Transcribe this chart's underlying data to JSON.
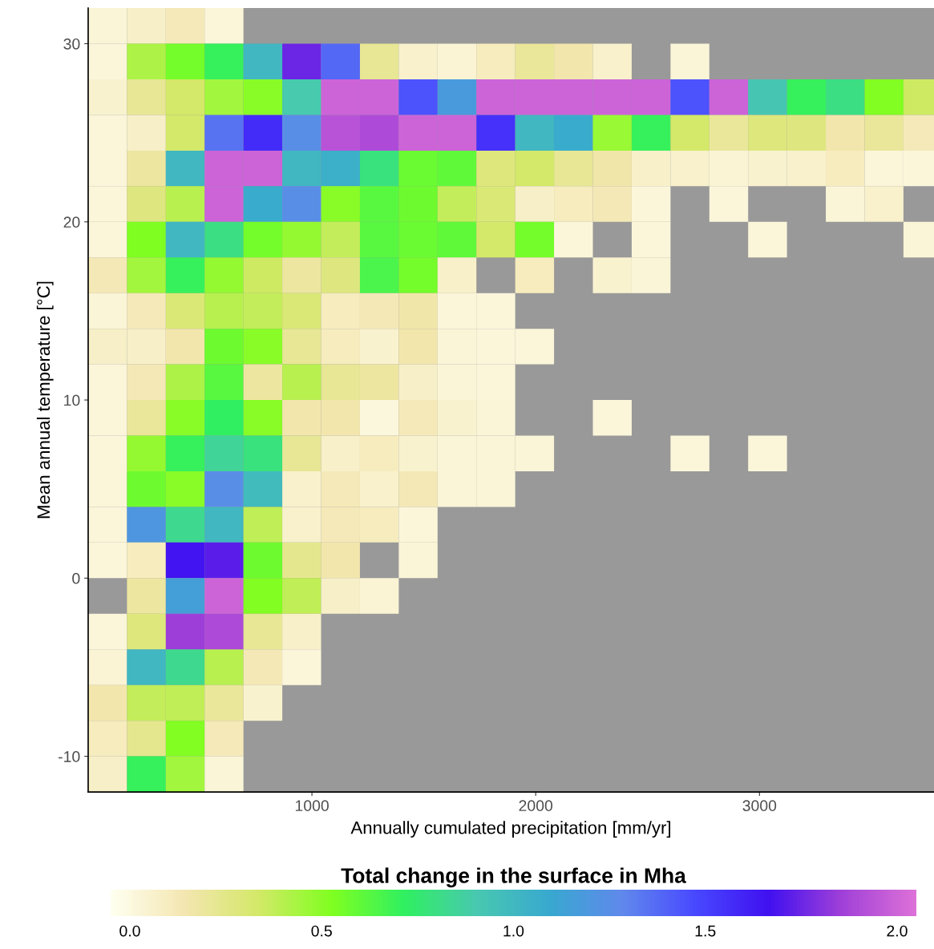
{
  "chart_data": {
    "type": "heatmap",
    "xlabel": "Annually cumulated precipitation [mm/yr]",
    "ylabel": "Mean annual temperature [°C]",
    "clabel": "Total change in the surface in Mha",
    "x": [
      87,
      260,
      434,
      607,
      781,
      954,
      1128,
      1301,
      1475,
      1648,
      1822,
      1995,
      2169,
      2342,
      2516,
      2689,
      2863,
      3036,
      3210,
      3383,
      3557,
      3730
    ],
    "y": [
      31,
      29,
      27,
      25,
      23,
      21,
      19,
      17,
      15,
      13,
      11,
      9,
      7,
      5,
      3,
      1,
      -1,
      -3,
      -5,
      -7,
      -9,
      -11
    ],
    "xlim": [
      0,
      3780
    ],
    "xticks": [
      1000,
      2000,
      3000
    ],
    "ylim": [
      -12,
      32
    ],
    "yticks": [
      -10,
      0,
      10,
      20,
      30
    ],
    "clim": [
      -0.05,
      2.05
    ],
    "cticks": [
      {
        "value": 0,
        "label": "0.0"
      },
      {
        "value": 0.5,
        "label": "0.5"
      },
      {
        "value": 1,
        "label": "1.0"
      },
      {
        "value": 1.5,
        "label": "1.5"
      },
      {
        "value": 2,
        "label": "2.0"
      }
    ],
    "colors": [
      "#fffff0",
      "#f3e6b0",
      "#d4e868",
      "#80ff20",
      "#30f060",
      "#48c8b0",
      "#38a8d0",
      "#6088ec",
      "#4848ff",
      "#4010f0",
      "#a040d8",
      "#dc70d8"
    ],
    "grid": false,
    "cells": [
      [
        0.03,
        0.08,
        0.12,
        0.02,
        null,
        null,
        null,
        null,
        null,
        null,
        null,
        null,
        null,
        null,
        null,
        null,
        null,
        null,
        null,
        null,
        null,
        null
      ],
      [
        0.02,
        0.42,
        0.55,
        0.7,
        1.0,
        1.75,
        1.38,
        0.22,
        0.06,
        0.04,
        0.1,
        0.2,
        0.15,
        0.06,
        null,
        0.03,
        null,
        null,
        null,
        null,
        null,
        null
      ],
      [
        0.05,
        0.22,
        0.33,
        0.45,
        0.5,
        0.9,
        2.0,
        2.0,
        1.45,
        1.18,
        2.0,
        2.0,
        2.0,
        2.0,
        2.0,
        1.45,
        2.0,
        0.92,
        0.7,
        0.8,
        0.52,
        0.35
      ],
      [
        0.02,
        0.08,
        0.33,
        1.35,
        1.57,
        1.25,
        1.93,
        1.9,
        2.0,
        2.0,
        1.55,
        1.0,
        1.08,
        0.47,
        0.7,
        0.33,
        0.2,
        0.28,
        0.27,
        0.15,
        0.2,
        0.12
      ],
      [
        0.02,
        0.18,
        1.0,
        2.0,
        2.0,
        1.0,
        1.05,
        0.78,
        0.58,
        0.6,
        0.28,
        0.33,
        0.22,
        0.16,
        0.07,
        0.06,
        0.04,
        0.05,
        0.06,
        0.1,
        0.02,
        0.02
      ],
      [
        0.02,
        0.27,
        0.4,
        2.0,
        1.08,
        1.25,
        0.5,
        0.62,
        0.57,
        0.37,
        0.3,
        0.08,
        0.1,
        0.13,
        0.02,
        null,
        0.02,
        null,
        null,
        0.03,
        0.06,
        null
      ],
      [
        0.02,
        0.53,
        1.0,
        0.8,
        0.55,
        0.48,
        0.37,
        0.62,
        0.58,
        0.6,
        0.33,
        0.55,
        0.02,
        null,
        0.02,
        null,
        null,
        0.02,
        null,
        null,
        null,
        0.03
      ],
      [
        0.13,
        0.45,
        0.7,
        0.48,
        0.35,
        0.18,
        0.27,
        0.65,
        0.55,
        0.07,
        null,
        0.1,
        null,
        0.05,
        0.03,
        null,
        null,
        null,
        null,
        null,
        null,
        null
      ],
      [
        0.03,
        0.12,
        0.3,
        0.4,
        0.37,
        0.3,
        0.1,
        0.13,
        0.16,
        0.02,
        0.02,
        null,
        null,
        null,
        null,
        null,
        null,
        null,
        null,
        null,
        null,
        null
      ],
      [
        0.08,
        0.08,
        0.15,
        0.57,
        0.5,
        0.22,
        0.1,
        0.05,
        0.15,
        0.03,
        0.02,
        0.02,
        null,
        null,
        null,
        null,
        null,
        null,
        null,
        null,
        null,
        null
      ],
      [
        0.02,
        0.13,
        0.42,
        0.62,
        0.18,
        0.4,
        0.22,
        0.18,
        0.08,
        0.03,
        0.02,
        null,
        null,
        null,
        null,
        null,
        null,
        null,
        null,
        null,
        null,
        null
      ],
      [
        0.02,
        0.2,
        0.5,
        0.72,
        0.5,
        0.15,
        0.15,
        0.01,
        0.12,
        0.05,
        0.03,
        null,
        null,
        0.02,
        null,
        null,
        null,
        null,
        null,
        null,
        null,
        null
      ],
      [
        0.02,
        0.48,
        0.7,
        0.85,
        0.78,
        0.22,
        0.07,
        0.1,
        0.05,
        0.03,
        0.03,
        0.03,
        null,
        null,
        null,
        0.02,
        null,
        0.02,
        null,
        null,
        null,
        null
      ],
      [
        0.02,
        0.57,
        0.5,
        1.25,
        0.98,
        0.06,
        0.12,
        0.06,
        0.13,
        0.03,
        0.03,
        null,
        null,
        null,
        null,
        null,
        null,
        null,
        null,
        null,
        null,
        null
      ],
      [
        0.02,
        1.2,
        0.82,
        1.0,
        0.38,
        0.06,
        0.12,
        0.1,
        0.02,
        null,
        null,
        null,
        null,
        null,
        null,
        null,
        null,
        null,
        null,
        null,
        null,
        null
      ],
      [
        0.02,
        0.1,
        1.65,
        1.72,
        0.57,
        0.23,
        0.15,
        null,
        0.03,
        null,
        null,
        null,
        null,
        null,
        null,
        null,
        null,
        null,
        null,
        null,
        null,
        null
      ],
      [
        null,
        0.18,
        1.15,
        2.0,
        0.52,
        0.38,
        0.08,
        0.04,
        null,
        null,
        null,
        null,
        null,
        null,
        null,
        null,
        null,
        null,
        null,
        null,
        null,
        null
      ],
      [
        0.02,
        0.28,
        1.85,
        1.9,
        0.22,
        0.07,
        null,
        null,
        null,
        null,
        null,
        null,
        null,
        null,
        null,
        null,
        null,
        null,
        null,
        null,
        null,
        null
      ],
      [
        0.04,
        1.0,
        0.82,
        0.4,
        0.13,
        0.02,
        null,
        null,
        null,
        null,
        null,
        null,
        null,
        null,
        null,
        null,
        null,
        null,
        null,
        null,
        null,
        null
      ],
      [
        0.15,
        0.37,
        0.38,
        0.2,
        0.05,
        null,
        null,
        null,
        null,
        null,
        null,
        null,
        null,
        null,
        null,
        null,
        null,
        null,
        null,
        null,
        null,
        null
      ],
      [
        0.1,
        0.23,
        0.52,
        0.12,
        null,
        null,
        null,
        null,
        null,
        null,
        null,
        null,
        null,
        null,
        null,
        null,
        null,
        null,
        null,
        null,
        null,
        null
      ],
      [
        0.08,
        0.7,
        0.45,
        0.03,
        null,
        null,
        null,
        null,
        null,
        null,
        null,
        null,
        null,
        null,
        null,
        null,
        null,
        null,
        null,
        null,
        null,
        null
      ]
    ]
  }
}
